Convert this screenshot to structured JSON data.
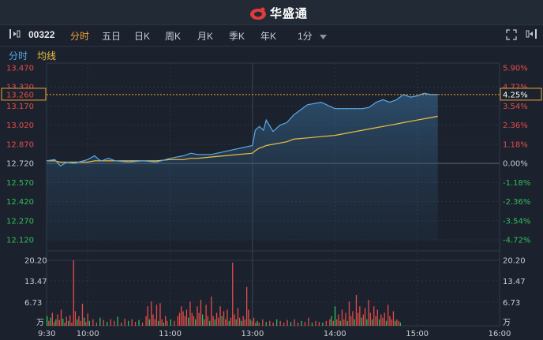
{
  "app": {
    "brand": "华盛通"
  },
  "toolbar": {
    "stock_code": "00322",
    "tabs": [
      {
        "label": "分时",
        "active": true
      },
      {
        "label": "五日",
        "active": false
      },
      {
        "label": "日K",
        "active": false
      },
      {
        "label": "周K",
        "active": false
      },
      {
        "label": "月K",
        "active": false
      },
      {
        "label": "季K",
        "active": false
      },
      {
        "label": "年K",
        "active": false
      }
    ],
    "interval": "1分"
  },
  "legend": {
    "line_label": "分时",
    "avg_label": "均线"
  },
  "colors": {
    "price_line": "#5aa9e6",
    "avg_line": "#f0c040",
    "up": "#e84a4a",
    "down": "#2fbf5a",
    "accent": "#f1a33a"
  },
  "current": {
    "price": "13.260",
    "percent": "4.25%"
  },
  "chart_data": {
    "type": "line",
    "prev_close": 12.72,
    "price_ticks": [
      "13.470",
      "13.320",
      "13.170",
      "13.020",
      "12.870",
      "12.720",
      "12.570",
      "12.420",
      "12.270",
      "12.120"
    ],
    "percent_ticks": [
      "5.90%",
      "4.72%",
      "3.54%",
      "2.36%",
      "1.18%",
      "0.00%",
      "-1.18%",
      "-2.36%",
      "-3.54%",
      "-4.72%"
    ],
    "volume_ticks": [
      "20.20",
      "13.47",
      "6.73",
      "万"
    ],
    "time_ticks": [
      "9:30",
      "10:00",
      "11:00",
      "13:00",
      "14:00",
      "15:00",
      "16:00"
    ],
    "x": [
      "9:30",
      "9:36",
      "9:40",
      "9:45",
      "9:50",
      "10:00",
      "10:05",
      "10:08",
      "10:10",
      "10:15",
      "10:20",
      "10:30",
      "10:40",
      "10:50",
      "11:00",
      "11:10",
      "11:15",
      "11:20",
      "11:30",
      "13:00",
      "13:02",
      "13:05",
      "13:08",
      "13:10",
      "13:15",
      "13:20",
      "13:25",
      "13:30",
      "13:40",
      "13:50",
      "14:00",
      "14:05",
      "14:10",
      "14:15",
      "14:20",
      "14:25",
      "14:30",
      "14:35",
      "14:40",
      "14:45",
      "14:50",
      "14:55",
      "15:00",
      "15:05",
      "15:10",
      "15:15"
    ],
    "series": [
      {
        "values": [
          12.74,
          12.75,
          12.7,
          12.73,
          12.72,
          12.75,
          12.78,
          12.75,
          12.74,
          12.76,
          12.74,
          12.73,
          12.74,
          12.73,
          12.76,
          12.78,
          12.8,
          12.79,
          12.79,
          12.86,
          12.98,
          13.01,
          12.98,
          13.06,
          12.97,
          13.02,
          13.04,
          13.1,
          13.18,
          13.2,
          13.15,
          13.15,
          13.15,
          13.15,
          13.15,
          13.16,
          13.2,
          13.22,
          13.2,
          13.22,
          13.26,
          13.24,
          13.25,
          13.27,
          13.26,
          13.26
        ]
      },
      {
        "values": [
          12.74,
          12.74,
          12.73,
          12.73,
          12.73,
          12.73,
          12.74,
          12.74,
          12.74,
          12.74,
          12.74,
          12.74,
          12.74,
          12.74,
          12.75,
          12.75,
          12.76,
          12.76,
          12.77,
          12.8,
          12.82,
          12.84,
          12.85,
          12.86,
          12.87,
          12.88,
          12.89,
          12.91,
          12.92,
          12.93,
          12.94,
          12.95,
          12.96,
          12.97,
          12.98,
          12.99,
          13.0,
          13.01,
          13.02,
          13.03,
          13.04,
          13.05,
          13.06,
          13.07,
          13.08,
          13.09
        ]
      }
    ],
    "volume": {
      "max": 20.2,
      "bars": [
        {
          "t": 0,
          "v": 3.0,
          "up": false
        },
        {
          "t": 2,
          "v": 1.5,
          "up": true
        },
        {
          "t": 4,
          "v": 2.5,
          "up": false
        },
        {
          "t": 6,
          "v": 4.0,
          "up": true
        },
        {
          "t": 8,
          "v": 1.2,
          "up": true
        },
        {
          "t": 10,
          "v": 2.0,
          "up": false
        },
        {
          "t": 12,
          "v": 3.5,
          "up": true
        },
        {
          "t": 14,
          "v": 1.8,
          "up": true
        },
        {
          "t": 16,
          "v": 5.0,
          "up": true
        },
        {
          "t": 18,
          "v": 2.2,
          "up": false
        },
        {
          "t": 20,
          "v": 1.0,
          "up": true
        },
        {
          "t": 22,
          "v": 2.8,
          "up": true
        },
        {
          "t": 24,
          "v": 1.5,
          "up": false
        },
        {
          "t": 26,
          "v": 3.2,
          "up": true
        },
        {
          "t": 28,
          "v": 1.0,
          "up": true
        },
        {
          "t": 30,
          "v": 20.2,
          "up": true
        },
        {
          "t": 32,
          "v": 4.5,
          "up": true
        },
        {
          "t": 34,
          "v": 2.0,
          "up": false
        },
        {
          "t": 36,
          "v": 3.0,
          "up": true
        },
        {
          "t": 38,
          "v": 1.5,
          "up": true
        },
        {
          "t": 40,
          "v": 6.8,
          "up": true
        },
        {
          "t": 42,
          "v": 2.5,
          "up": false
        },
        {
          "t": 44,
          "v": 1.2,
          "up": true
        },
        {
          "t": 46,
          "v": 3.8,
          "up": true
        },
        {
          "t": 48,
          "v": 1.5,
          "up": false
        },
        {
          "t": 52,
          "v": 2.0,
          "up": true
        },
        {
          "t": 56,
          "v": 1.0,
          "up": true
        },
        {
          "t": 60,
          "v": 2.5,
          "up": false
        },
        {
          "t": 64,
          "v": 1.8,
          "up": true
        },
        {
          "t": 68,
          "v": 1.2,
          "up": false
        },
        {
          "t": 72,
          "v": 2.0,
          "up": true
        },
        {
          "t": 76,
          "v": 1.5,
          "up": true
        },
        {
          "t": 80,
          "v": 2.8,
          "up": false
        },
        {
          "t": 84,
          "v": 1.0,
          "up": true
        },
        {
          "t": 88,
          "v": 2.2,
          "up": true
        },
        {
          "t": 92,
          "v": 1.5,
          "up": false
        },
        {
          "t": 96,
          "v": 2.0,
          "up": true
        },
        {
          "t": 100,
          "v": 1.2,
          "up": true
        },
        {
          "t": 104,
          "v": 1.8,
          "up": false
        },
        {
          "t": 108,
          "v": 1.0,
          "up": true
        },
        {
          "t": 112,
          "v": 3.0,
          "up": true
        },
        {
          "t": 114,
          "v": 6.0,
          "up": true
        },
        {
          "t": 116,
          "v": 2.0,
          "up": false
        },
        {
          "t": 118,
          "v": 7.5,
          "up": true
        },
        {
          "t": 120,
          "v": 3.5,
          "up": true
        },
        {
          "t": 122,
          "v": 2.0,
          "up": true
        },
        {
          "t": 124,
          "v": 6.5,
          "up": true
        },
        {
          "t": 126,
          "v": 1.5,
          "up": false
        },
        {
          "t": 128,
          "v": 7.0,
          "up": true
        },
        {
          "t": 130,
          "v": 2.0,
          "up": true
        },
        {
          "t": 132,
          "v": 1.0,
          "up": false
        },
        {
          "t": 134,
          "v": 3.0,
          "up": true
        },
        {
          "t": 136,
          "v": 1.5,
          "up": true
        },
        {
          "t": 140,
          "v": 2.0,
          "up": false
        },
        {
          "t": 144,
          "v": 1.5,
          "up": true
        },
        {
          "t": 148,
          "v": 3.0,
          "up": true
        },
        {
          "t": 150,
          "v": 4.0,
          "up": true
        },
        {
          "t": 152,
          "v": 6.0,
          "up": true
        },
        {
          "t": 154,
          "v": 4.5,
          "up": true
        },
        {
          "t": 156,
          "v": 3.0,
          "up": true
        },
        {
          "t": 158,
          "v": 5.0,
          "up": true
        },
        {
          "t": 160,
          "v": 2.5,
          "up": false
        },
        {
          "t": 162,
          "v": 7.5,
          "up": true
        },
        {
          "t": 164,
          "v": 4.0,
          "up": true
        },
        {
          "t": 166,
          "v": 3.0,
          "up": true
        },
        {
          "t": 168,
          "v": 2.0,
          "up": false
        },
        {
          "t": 170,
          "v": 6.0,
          "up": true
        },
        {
          "t": 172,
          "v": 4.0,
          "up": true
        },
        {
          "t": 174,
          "v": 8.0,
          "up": true
        },
        {
          "t": 176,
          "v": 3.5,
          "up": false
        },
        {
          "t": 178,
          "v": 2.0,
          "up": true
        },
        {
          "t": 180,
          "v": 6.5,
          "up": true
        },
        {
          "t": 182,
          "v": 3.0,
          "up": true
        },
        {
          "t": 184,
          "v": 1.5,
          "up": false
        },
        {
          "t": 186,
          "v": 9.0,
          "up": true
        },
        {
          "t": 188,
          "v": 3.0,
          "up": true
        },
        {
          "t": 190,
          "v": 2.0,
          "up": false
        },
        {
          "t": 192,
          "v": 4.0,
          "up": true
        },
        {
          "t": 194,
          "v": 2.5,
          "up": true
        },
        {
          "t": 196,
          "v": 6.0,
          "up": true
        },
        {
          "t": 198,
          "v": 3.0,
          "up": false
        },
        {
          "t": 200,
          "v": 4.5,
          "up": true
        },
        {
          "t": 202,
          "v": 2.0,
          "up": true
        },
        {
          "t": 204,
          "v": 5.0,
          "up": true
        },
        {
          "t": 206,
          "v": 1.5,
          "up": false
        },
        {
          "t": 208,
          "v": 2.5,
          "up": true
        },
        {
          "t": 210,
          "v": 19.5,
          "up": true
        },
        {
          "t": 212,
          "v": 3.5,
          "up": true
        },
        {
          "t": 214,
          "v": 2.0,
          "up": false
        },
        {
          "t": 216,
          "v": 5.5,
          "up": true
        },
        {
          "t": 218,
          "v": 2.5,
          "up": true
        },
        {
          "t": 220,
          "v": 1.5,
          "up": false
        },
        {
          "t": 222,
          "v": 3.0,
          "up": true
        },
        {
          "t": 224,
          "v": 2.0,
          "up": true
        },
        {
          "t": 226,
          "v": 12.0,
          "up": true
        },
        {
          "t": 228,
          "v": 5.0,
          "up": true
        },
        {
          "t": 230,
          "v": 2.0,
          "up": false
        },
        {
          "t": 232,
          "v": 1.5,
          "up": true
        },
        {
          "t": 234,
          "v": 2.5,
          "up": true
        },
        {
          "t": 236,
          "v": 1.0,
          "up": true
        },
        {
          "t": 238,
          "v": 1.5,
          "up": false
        },
        {
          "t": 240,
          "v": 1.0,
          "up": true
        },
        {
          "t": 244,
          "v": 2.0,
          "up": true
        },
        {
          "t": 248,
          "v": 1.2,
          "up": false
        },
        {
          "t": 252,
          "v": 1.5,
          "up": true
        },
        {
          "t": 256,
          "v": 1.0,
          "up": true
        },
        {
          "t": 260,
          "v": 2.0,
          "up": false
        },
        {
          "t": 264,
          "v": 1.5,
          "up": true
        },
        {
          "t": 268,
          "v": 1.0,
          "up": true
        },
        {
          "t": 272,
          "v": 1.8,
          "up": true
        },
        {
          "t": 276,
          "v": 1.2,
          "up": false
        },
        {
          "t": 280,
          "v": 2.0,
          "up": true
        },
        {
          "t": 284,
          "v": 1.0,
          "up": true
        },
        {
          "t": 288,
          "v": 1.5,
          "up": false
        },
        {
          "t": 292,
          "v": 1.2,
          "up": true
        },
        {
          "t": 296,
          "v": 2.5,
          "up": true
        },
        {
          "t": 300,
          "v": 1.0,
          "up": false
        },
        {
          "t": 304,
          "v": 1.5,
          "up": true
        },
        {
          "t": 308,
          "v": 1.2,
          "up": true
        },
        {
          "t": 312,
          "v": 1.0,
          "up": false
        },
        {
          "t": 316,
          "v": 1.5,
          "up": true
        },
        {
          "t": 320,
          "v": 2.0,
          "up": true
        },
        {
          "t": 322,
          "v": 3.0,
          "up": false
        },
        {
          "t": 324,
          "v": 1.5,
          "up": true
        },
        {
          "t": 326,
          "v": 6.0,
          "up": false
        },
        {
          "t": 328,
          "v": 2.0,
          "up": true
        },
        {
          "t": 330,
          "v": 3.5,
          "up": true
        },
        {
          "t": 332,
          "v": 1.5,
          "up": false
        },
        {
          "t": 334,
          "v": 5.0,
          "up": true
        },
        {
          "t": 336,
          "v": 2.0,
          "up": true
        },
        {
          "t": 338,
          "v": 4.0,
          "up": true
        },
        {
          "t": 340,
          "v": 1.5,
          "up": false
        },
        {
          "t": 342,
          "v": 7.5,
          "up": true
        },
        {
          "t": 344,
          "v": 3.0,
          "up": true
        },
        {
          "t": 346,
          "v": 4.5,
          "up": true
        },
        {
          "t": 348,
          "v": 2.0,
          "up": false
        },
        {
          "t": 350,
          "v": 9.5,
          "up": true
        },
        {
          "t": 352,
          "v": 4.0,
          "up": true
        },
        {
          "t": 354,
          "v": 6.0,
          "up": true
        },
        {
          "t": 356,
          "v": 2.5,
          "up": false
        },
        {
          "t": 358,
          "v": 3.5,
          "up": true
        },
        {
          "t": 360,
          "v": 5.5,
          "up": true
        },
        {
          "t": 362,
          "v": 2.0,
          "up": false
        },
        {
          "t": 364,
          "v": 8.0,
          "up": true
        },
        {
          "t": 366,
          "v": 4.0,
          "up": true
        },
        {
          "t": 368,
          "v": 2.0,
          "up": false
        },
        {
          "t": 370,
          "v": 6.0,
          "up": true
        },
        {
          "t": 372,
          "v": 3.0,
          "up": true
        },
        {
          "t": 374,
          "v": 5.0,
          "up": true
        },
        {
          "t": 376,
          "v": 2.0,
          "up": false
        },
        {
          "t": 378,
          "v": 3.5,
          "up": true
        },
        {
          "t": 380,
          "v": 2.5,
          "up": true
        },
        {
          "t": 382,
          "v": 4.0,
          "up": true
        },
        {
          "t": 384,
          "v": 1.5,
          "up": false
        },
        {
          "t": 386,
          "v": 6.5,
          "up": true
        },
        {
          "t": 388,
          "v": 3.0,
          "up": true
        },
        {
          "t": 390,
          "v": 2.0,
          "up": true
        },
        {
          "t": 392,
          "v": 4.5,
          "up": true
        },
        {
          "t": 394,
          "v": 1.5,
          "up": false
        },
        {
          "t": 396,
          "v": 2.0,
          "up": true
        },
        {
          "t": 398,
          "v": 1.5,
          "up": true
        },
        {
          "t": 400,
          "v": 1.0,
          "up": false
        }
      ]
    }
  }
}
